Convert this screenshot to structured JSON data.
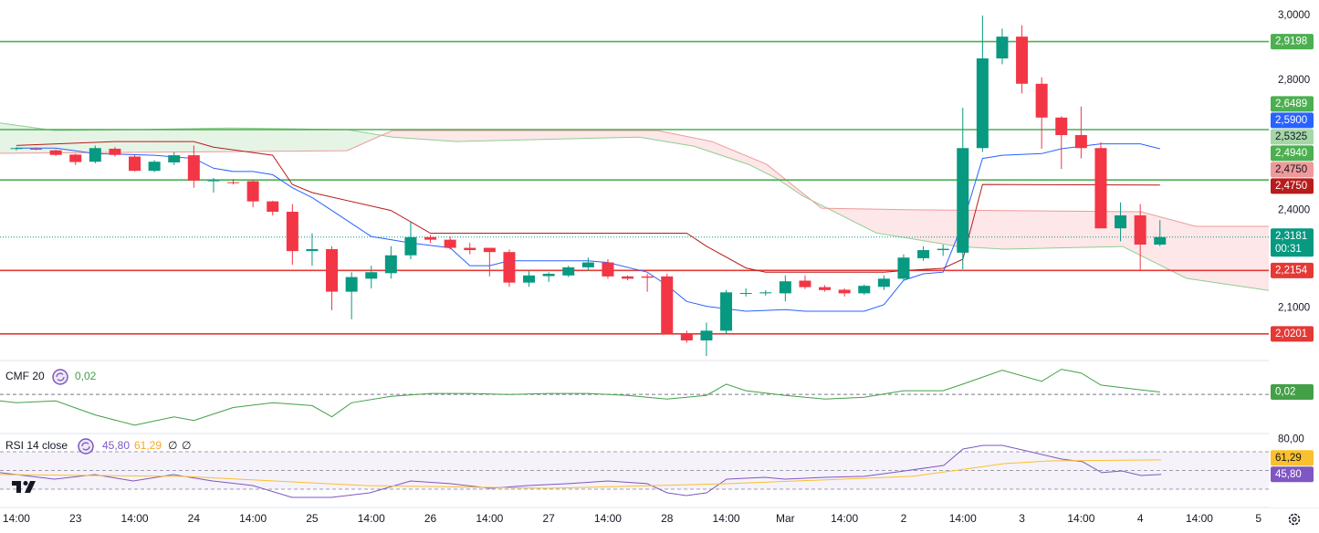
{
  "chart_data": {
    "type": "candlestick",
    "xlim": [
      -0.83,
      63.52
    ],
    "xticks": [
      {
        "value": 0,
        "label": "14:00"
      },
      {
        "value": 3,
        "label": "23"
      },
      {
        "value": 6,
        "label": "14:00"
      },
      {
        "value": 9,
        "label": "24"
      },
      {
        "value": 12,
        "label": "14:00"
      },
      {
        "value": 15,
        "label": "25"
      },
      {
        "value": 18,
        "label": "14:00"
      },
      {
        "value": 21,
        "label": "26"
      },
      {
        "value": 24,
        "label": "14:00"
      },
      {
        "value": 27,
        "label": "27"
      },
      {
        "value": 30,
        "label": "14:00"
      },
      {
        "value": 33,
        "label": "28"
      },
      {
        "value": 36,
        "label": "14:00"
      },
      {
        "value": 39,
        "label": "Mar"
      },
      {
        "value": 42,
        "label": "14:00"
      },
      {
        "value": 45,
        "label": "2"
      },
      {
        "value": 48,
        "label": "14:00"
      },
      {
        "value": 51,
        "label": "3"
      },
      {
        "value": 54,
        "label": "14:00"
      },
      {
        "value": 57,
        "label": "4"
      },
      {
        "value": 60,
        "label": "14:00"
      },
      {
        "value": 63,
        "label": "5"
      }
    ],
    "ylim": [
      1.9382,
      3.0478
    ],
    "yticks": [
      {
        "value": 3,
        "label": "3,0000"
      },
      {
        "value": 2.8,
        "label": "2,8000"
      },
      {
        "value": 2.4,
        "label": "2,4000"
      },
      {
        "value": 2.1,
        "label": "2,1000"
      }
    ],
    "up_color": "#089981",
    "down_color": "#f23645",
    "candles": {
      "x": [
        0,
        1,
        2,
        3,
        4,
        5,
        6,
        7,
        8,
        9,
        10,
        11,
        12,
        13,
        14,
        15,
        16,
        17,
        18,
        19,
        20,
        21,
        22,
        23,
        24,
        25,
        26,
        27,
        28,
        29,
        30,
        31,
        32,
        33,
        34,
        35,
        36,
        37,
        38,
        39,
        40,
        41,
        42,
        43,
        44,
        45,
        46,
        47,
        48,
        49,
        50,
        51,
        52,
        53,
        54,
        55,
        56,
        57,
        58
      ],
      "open": [
        2.59,
        2.59,
        2.585,
        2.572,
        2.55,
        2.59,
        2.566,
        2.522,
        2.548,
        2.57,
        2.49,
        2.487,
        2.49,
        2.428,
        2.396,
        2.275,
        2.281,
        2.15,
        2.19,
        2.207,
        2.262,
        2.318,
        2.31,
        2.285,
        2.285,
        2.272,
        2.178,
        2.198,
        2.2,
        2.225,
        2.24,
        2.197,
        2.197,
        2.197,
        2.022,
        2.0,
        2.03,
        2.145,
        2.145,
        2.145,
        2.184,
        2.164,
        2.156,
        2.145,
        2.165,
        2.19,
        2.253,
        2.278,
        2.27,
        2.592,
        2.868,
        2.935,
        2.79,
        2.686,
        2.632,
        2.592,
        2.345,
        2.385,
        2.295
      ],
      "high": [
        2.595,
        2.594,
        2.588,
        2.575,
        2.6,
        2.595,
        2.57,
        2.555,
        2.58,
        2.6,
        2.5,
        2.497,
        2.495,
        2.43,
        2.42,
        2.33,
        2.29,
        2.21,
        2.23,
        2.29,
        2.365,
        2.325,
        2.32,
        2.3,
        2.285,
        2.28,
        2.215,
        2.21,
        2.23,
        2.255,
        2.25,
        2.2,
        2.205,
        2.205,
        2.03,
        2.055,
        2.155,
        2.16,
        2.155,
        2.2,
        2.2,
        2.17,
        2.16,
        2.172,
        2.2,
        2.265,
        2.29,
        2.295,
        2.716,
        3.0,
        2.96,
        2.97,
        2.81,
        2.69,
        2.72,
        2.61,
        2.425,
        2.42,
        2.37
      ],
      "low": [
        2.585,
        2.586,
        2.568,
        2.54,
        2.545,
        2.566,
        2.52,
        2.518,
        2.54,
        2.47,
        2.455,
        2.48,
        2.41,
        2.385,
        2.233,
        2.23,
        2.093,
        2.065,
        2.16,
        2.19,
        2.25,
        2.3,
        2.28,
        2.265,
        2.197,
        2.165,
        2.165,
        2.18,
        2.195,
        2.215,
        2.19,
        2.185,
        2.15,
        2.018,
        1.993,
        1.952,
        2.02,
        2.135,
        2.138,
        2.12,
        2.158,
        2.15,
        2.135,
        2.14,
        2.155,
        2.185,
        2.245,
        2.26,
        2.219,
        2.58,
        2.85,
        2.76,
        2.59,
        2.528,
        2.56,
        2.345,
        2.305,
        2.215,
        2.29
      ],
      "close": [
        2.592,
        2.589,
        2.571,
        2.549,
        2.592,
        2.571,
        2.522,
        2.55,
        2.57,
        2.492,
        2.494,
        2.486,
        2.428,
        2.396,
        2.275,
        2.281,
        2.15,
        2.195,
        2.21,
        2.262,
        2.318,
        2.31,
        2.285,
        2.278,
        2.272,
        2.178,
        2.2,
        2.205,
        2.225,
        2.24,
        2.197,
        2.19,
        2.193,
        2.022,
        2.0,
        2.03,
        2.148,
        2.146,
        2.148,
        2.182,
        2.164,
        2.155,
        2.145,
        2.168,
        2.19,
        2.255,
        2.278,
        2.282,
        2.592,
        2.868,
        2.935,
        2.79,
        2.686,
        2.632,
        2.592,
        2.345,
        2.385,
        2.295,
        2.3181
      ]
    },
    "cloud": {
      "up_fill": "rgba(76,175,80,0.14)",
      "down_fill": "rgba(242,54,69,0.12)",
      "span_a": {
        "color": "#8fcf91",
        "x": [
          -0.83,
          1.94,
          6.11,
          10.74,
          16.76,
          19.07,
          22.31,
          31.57,
          34.35,
          37.13,
          38.52,
          39.91,
          43.61,
          47.78,
          50.09,
          56.11,
          57.5,
          59.35,
          63.52
        ],
        "values": [
          2.669,
          2.646,
          2.649,
          2.654,
          2.649,
          2.626,
          2.612,
          2.626,
          2.598,
          2.542,
          2.5,
          2.444,
          2.331,
          2.289,
          2.281,
          2.289,
          2.247,
          2.191,
          2.154
        ]
      },
      "span_b": {
        "color": "#ef9a9a",
        "x": [
          -0.83,
          6.11,
          16.76,
          19.07,
          32.5,
          35.28,
          38.06,
          40.83,
          45.46,
          57.04,
          59.81,
          63.52
        ],
        "values": [
          2.576,
          2.579,
          2.584,
          2.646,
          2.646,
          2.612,
          2.542,
          2.407,
          2.402,
          2.396,
          2.351,
          2.351
        ]
      }
    },
    "lines": [
      {
        "color": "#2962ff",
        "x": [
          0,
          2,
          4,
          7,
          9,
          10,
          11,
          12,
          13,
          14,
          15,
          16,
          17,
          18,
          19,
          20,
          22,
          23,
          24,
          25,
          29,
          30,
          32,
          33,
          34,
          35,
          37,
          39,
          40,
          43,
          44,
          45,
          46,
          47,
          48,
          49,
          50,
          52,
          53,
          55,
          57,
          58
        ],
        "values": [
          2.592,
          2.592,
          2.575,
          2.57,
          2.56,
          2.53,
          2.52,
          2.52,
          2.51,
          2.47,
          2.44,
          2.4,
          2.36,
          2.32,
          2.31,
          2.3,
          2.285,
          2.23,
          2.23,
          2.245,
          2.245,
          2.24,
          2.21,
          2.17,
          2.12,
          2.105,
          2.09,
          2.095,
          2.09,
          2.09,
          2.11,
          2.185,
          2.205,
          2.21,
          2.36,
          2.56,
          2.57,
          2.575,
          2.59,
          2.605,
          2.605,
          2.59
        ]
      },
      {
        "color": "#b71c1c",
        "x": [
          0,
          5,
          9,
          10,
          13,
          14,
          15,
          19,
          21,
          34,
          35,
          37,
          38,
          44,
          45,
          47,
          48,
          49,
          58
        ],
        "values": [
          2.6,
          2.612,
          2.612,
          2.595,
          2.57,
          2.48,
          2.455,
          2.4,
          2.33,
          2.33,
          2.29,
          2.223,
          2.21,
          2.21,
          2.215,
          2.222,
          2.25,
          2.48,
          2.478
        ]
      }
    ],
    "levels": [
      {
        "value": 2.9198,
        "label": "2,9198",
        "color": "#4caf50"
      },
      {
        "value": 2.6489,
        "label": "2,6489",
        "color": "#4caf50"
      },
      {
        "value": 2.494,
        "label": "2,4940",
        "color": "#4caf50"
      },
      {
        "value": 2.2154,
        "label": "2,2154",
        "color": "#e53935"
      },
      {
        "value": 2.0201,
        "label": "2,0201",
        "color": "#e53935"
      }
    ],
    "price_tags": [
      {
        "value": 2.59,
        "label": "2,5900",
        "color": "#2962ff",
        "text_color": "#ffffff"
      },
      {
        "value": 2.5325,
        "label": "2,5325",
        "color": "#a5d6a7",
        "text_color": "#131722"
      },
      {
        "value": 2.475,
        "label": "2,4750",
        "color": "#ef9a9a",
        "text_color": "#131722"
      },
      {
        "value": 2.475,
        "label": "2,4750",
        "color": "#b71c1c",
        "text_color": "#ffffff"
      }
    ],
    "current": {
      "value": 2.3181,
      "label": "2,3181",
      "countdown": "00:31",
      "color": "#089981"
    },
    "cmf": {
      "title": "CMF 20",
      "ylim": [
        -0.3,
        0.28
      ],
      "ref_lines": [
        0
      ],
      "color": "#43a047",
      "legend_value": {
        "value": 0.02,
        "label": "0,02"
      },
      "x": [
        -0.83,
        0,
        2,
        4,
        6,
        8,
        9,
        11,
        13,
        15,
        16,
        17,
        19,
        21,
        23,
        25,
        27,
        29,
        31,
        33,
        35,
        36,
        37,
        39,
        41,
        43,
        45,
        47,
        48,
        50,
        52,
        53,
        54,
        55,
        57,
        58
      ],
      "values": [
        -0.054,
        -0.069,
        -0.054,
        -0.169,
        -0.254,
        -0.185,
        -0.215,
        -0.108,
        -0.069,
        -0.092,
        -0.185,
        -0.069,
        -0.015,
        0.008,
        0.008,
        0.0,
        0.008,
        0.008,
        -0.008,
        -0.038,
        -0.008,
        0.085,
        0.031,
        -0.008,
        -0.038,
        -0.023,
        0.031,
        0.031,
        0.085,
        0.2,
        0.108,
        0.208,
        0.177,
        0.077,
        0.038,
        0.02
      ]
    },
    "rsi": {
      "title": "RSI 14 close",
      "ylim": [
        10.5,
        88.5
      ],
      "yticks": [
        {
          "value": 80,
          "label": "80,00"
        }
      ],
      "bands": [
        70,
        50,
        30
      ],
      "band_fill": "rgba(126,87,194,0.08)",
      "legend_extra": [
        "∅",
        "∅"
      ],
      "series": [
        {
          "color": "#7e57c2",
          "legend_value": {
            "value": 45.8,
            "label": "45,80"
          },
          "text_color": "#ffffff",
          "x": [
            -0.83,
            1.94,
            3.98,
            5.93,
            7.96,
            9.95,
            11.99,
            13.98,
            15.97,
            17.92,
            20,
            21.99,
            24.03,
            25.97,
            28.01,
            30,
            31.99,
            33.01,
            33.98,
            35,
            36.02,
            37.96,
            38.98,
            41.02,
            43.01,
            45.05,
            47.04,
            48.01,
            49.03,
            50,
            51.02,
            53.01,
            54.07,
            55.05,
            56.06,
            57.04,
            58.06
          ],
          "values": [
            47.6,
            40.7,
            45.6,
            38.8,
            45.6,
            38.8,
            33.9,
            21.2,
            21.2,
            26.1,
            38.8,
            35.9,
            31.0,
            33.9,
            35.9,
            38.8,
            35.9,
            26.1,
            23.2,
            26.1,
            40.7,
            42.7,
            40.7,
            42.7,
            43.7,
            49.5,
            55.4,
            72.9,
            76.8,
            76.8,
            71.9,
            62.2,
            59.3,
            47.6,
            49.5,
            44.6,
            45.8
          ]
        },
        {
          "color": "#fbc02d",
          "legend_value": {
            "value": 61.29,
            "label": "61,29"
          },
          "text_color": "#131722",
          "x": [
            -0.83,
            8.43,
            17.69,
            26.94,
            36.2,
            45.46,
            47.78,
            50.09,
            52.41,
            58.06
          ],
          "values": [
            45.6,
            43.7,
            33.9,
            31.0,
            35.9,
            43.7,
            50.5,
            57.3,
            60.2,
            61.29
          ]
        }
      ]
    }
  }
}
